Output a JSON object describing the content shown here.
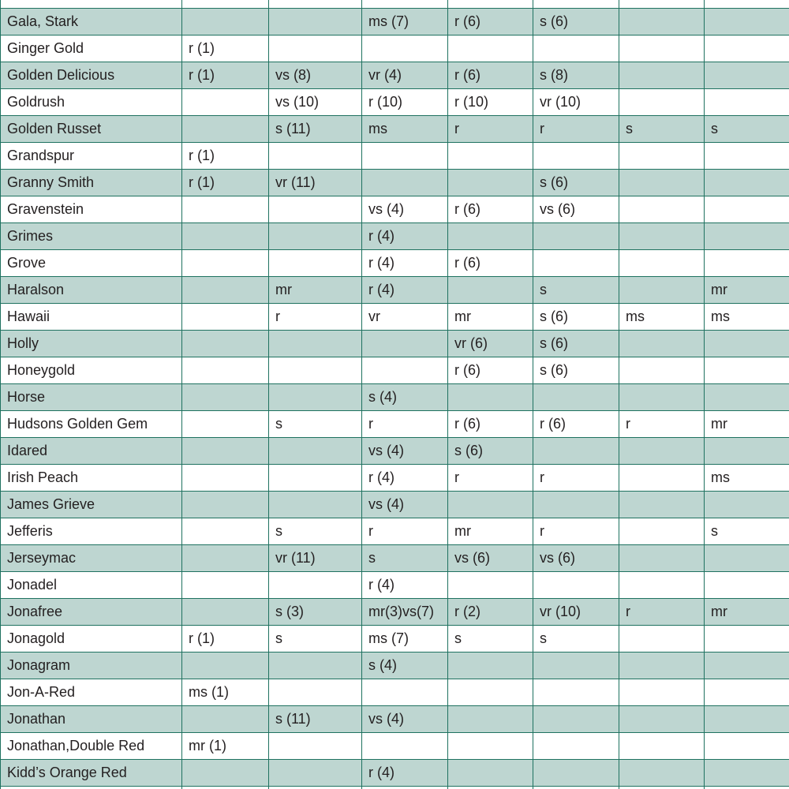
{
  "table": {
    "rows": [
      {
        "name": "Gala, Stark",
        "cells": {
          "3": "ms (7)",
          "4": "r (6)",
          "5": "s (6)"
        }
      },
      {
        "name": "Ginger Gold",
        "cells": {
          "1": "r (1)"
        }
      },
      {
        "name": "Golden Delicious",
        "cells": {
          "1": "r (1)",
          "2": "vs (8)",
          "3": "vr (4)",
          "4": "r (6)",
          "5": "s (8)"
        }
      },
      {
        "name": "Goldrush",
        "cells": {
          "2": "vs (10)",
          "3": "r (10)",
          "4": "r (10)",
          "5": "vr (10)"
        }
      },
      {
        "name": "Golden Russet",
        "cells": {
          "2": "s (11)",
          "3": "ms",
          "4": "r",
          "5": "r",
          "6": "s",
          "7": "s"
        }
      },
      {
        "name": "Grandspur",
        "cells": {
          "1": "r (1)"
        }
      },
      {
        "name": "Granny Smith",
        "cells": {
          "1": "r (1)",
          "2": "vr (11)",
          "5": "s (6)"
        }
      },
      {
        "name": "Gravenstein",
        "cells": {
          "3": "vs (4)",
          "4": "r (6)",
          "5": "vs (6)"
        }
      },
      {
        "name": "Grimes",
        "cells": {
          "3": "r (4)"
        }
      },
      {
        "name": "Grove",
        "cells": {
          "3": "r (4)",
          "4": "r (6)"
        }
      },
      {
        "name": "Haralson",
        "cells": {
          "2": "mr",
          "3": "r (4)",
          "5": "s",
          "7": "mr"
        }
      },
      {
        "name": "Hawaii",
        "cells": {
          "2": "r",
          "3": "vr",
          "4": "mr",
          "5": "s (6)",
          "6": "ms",
          "7": "ms"
        }
      },
      {
        "name": "Holly",
        "cells": {
          "4": "vr (6)",
          "5": "s (6)"
        }
      },
      {
        "name": "Honeygold",
        "cells": {
          "4": "r (6)",
          "5": "s (6)"
        }
      },
      {
        "name": "Horse",
        "cells": {
          "3": "s (4)"
        }
      },
      {
        "name": "Hudsons Golden Gem",
        "cells": {
          "2": "s",
          "3": "r",
          "4": "r (6)",
          "5": "r (6)",
          "6": "r",
          "7": "mr"
        }
      },
      {
        "name": "Idared",
        "cells": {
          "3": "vs (4)",
          "4": "s (6)"
        }
      },
      {
        "name": "Irish Peach",
        "cells": {
          "3": "r (4)",
          "4": "r",
          "5": "r",
          "7": "ms"
        }
      },
      {
        "name": "James Grieve",
        "cells": {
          "3": "vs (4)"
        }
      },
      {
        "name": "Jefferis",
        "cells": {
          "2": "s",
          "3": "r",
          "4": "mr",
          "5": "r",
          "7": "s"
        }
      },
      {
        "name": "Jerseymac",
        "cells": {
          "2": "vr (11)",
          "3": "s",
          "4": "vs (6)",
          "5": "vs (6)"
        }
      },
      {
        "name": "Jonadel",
        "cells": {
          "3": "r (4)"
        }
      },
      {
        "name": "Jonafree",
        "cells": {
          "2": "s (3)",
          "3": "mr(3)vs(7)",
          "4": "r (2)",
          "5": "vr (10)",
          "6": "r",
          "7": "mr"
        }
      },
      {
        "name": "Jonagold",
        "cells": {
          "1": "r (1)",
          "2": "s",
          "3": "ms (7)",
          "4": "s",
          "5": "s"
        }
      },
      {
        "name": "Jonagram",
        "cells": {
          "3": "s (4)"
        }
      },
      {
        "name": "Jon-A-Red",
        "cells": {
          "1": "ms (1)"
        }
      },
      {
        "name": "Jonathan",
        "cells": {
          "2": "s (11)",
          "3": "vs (4)"
        }
      },
      {
        "name": "Jonathan,Double Red",
        "cells": {
          "1": "mr (1)"
        }
      },
      {
        "name": "Kidd’s Orange Red",
        "cells": {
          "3": "r (4)"
        }
      }
    ]
  }
}
